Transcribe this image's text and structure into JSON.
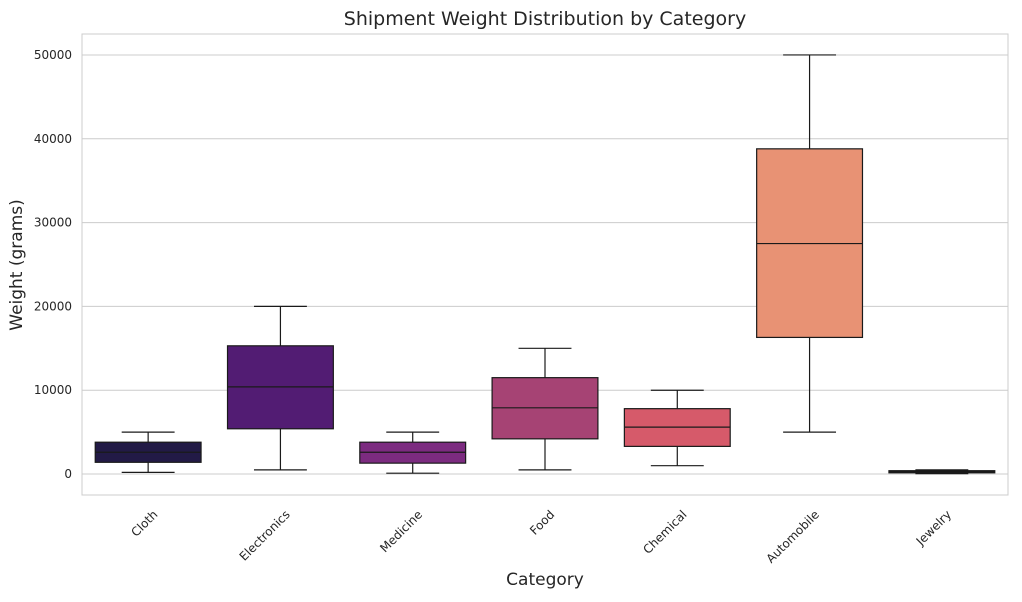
{
  "chart_data": {
    "type": "box",
    "title": "Shipment Weight Distribution by Category",
    "xlabel": "Category",
    "ylabel": "Weight (grams)",
    "ylim": [
      -2500,
      52500
    ],
    "yticks": [
      0,
      10000,
      20000,
      30000,
      40000,
      50000
    ],
    "grid": "horizontal",
    "categories": [
      "Cloth",
      "Electronics",
      "Medicine",
      "Food",
      "Chemical",
      "Automobile",
      "Jewelry"
    ],
    "series": [
      {
        "category": "Cloth",
        "whisker_low": 200,
        "q1": 1400,
        "median": 2600,
        "q3": 3800,
        "whisker_high": 5000,
        "color": "#221a46"
      },
      {
        "category": "Electronics",
        "whisker_low": 500,
        "q1": 5400,
        "median": 10400,
        "q3": 15300,
        "whisker_high": 20000,
        "color": "#521c73"
      },
      {
        "category": "Medicine",
        "whisker_low": 100,
        "q1": 1300,
        "median": 2600,
        "q3": 3800,
        "whisker_high": 5000,
        "color": "#7c2b80"
      },
      {
        "category": "Food",
        "whisker_low": 500,
        "q1": 4200,
        "median": 7900,
        "q3": 11500,
        "whisker_high": 15000,
        "color": "#a64374"
      },
      {
        "category": "Chemical",
        "whisker_low": 1000,
        "q1": 3300,
        "median": 5600,
        "q3": 7800,
        "whisker_high": 10000,
        "color": "#d65a6a"
      },
      {
        "category": "Automobile",
        "whisker_low": 5000,
        "q1": 16300,
        "median": 27500,
        "q3": 38800,
        "whisker_high": 50000,
        "color": "#e89274"
      },
      {
        "category": "Jewelry",
        "whisker_low": 50,
        "q1": 150,
        "median": 250,
        "q3": 400,
        "whisker_high": 500,
        "color": "#1a1a1a"
      }
    ]
  }
}
